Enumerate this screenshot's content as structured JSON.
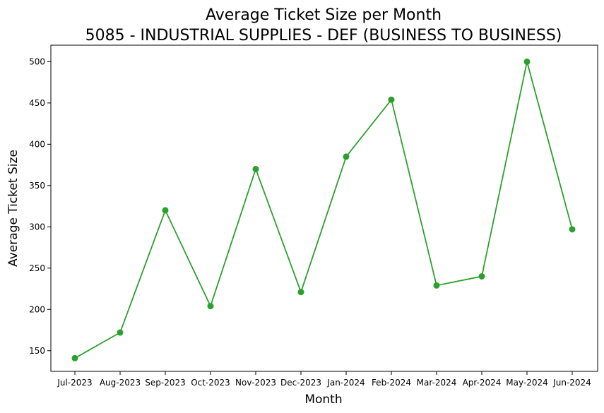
{
  "chart_data": {
    "type": "line",
    "title": "Average Ticket Size per Month",
    "subtitle": "5085 - INDUSTRIAL SUPPLIES - DEF (BUSINESS TO BUSINESS)",
    "xlabel": "Month",
    "ylabel": "Average Ticket Size",
    "categories": [
      "Jul-2023",
      "Aug-2023",
      "Sep-2023",
      "Oct-2023",
      "Nov-2023",
      "Dec-2023",
      "Jan-2024",
      "Feb-2024",
      "Mar-2024",
      "Apr-2024",
      "May-2024",
      "Jun-2024"
    ],
    "values": [
      141,
      172,
      320,
      204,
      370,
      221,
      385,
      454,
      229,
      240,
      500,
      297
    ],
    "ylim": [
      125,
      520
    ],
    "yticks": [
      150,
      200,
      250,
      300,
      350,
      400,
      450,
      500
    ],
    "line_color": "#2ca02c",
    "grid": false,
    "legend": "none"
  }
}
